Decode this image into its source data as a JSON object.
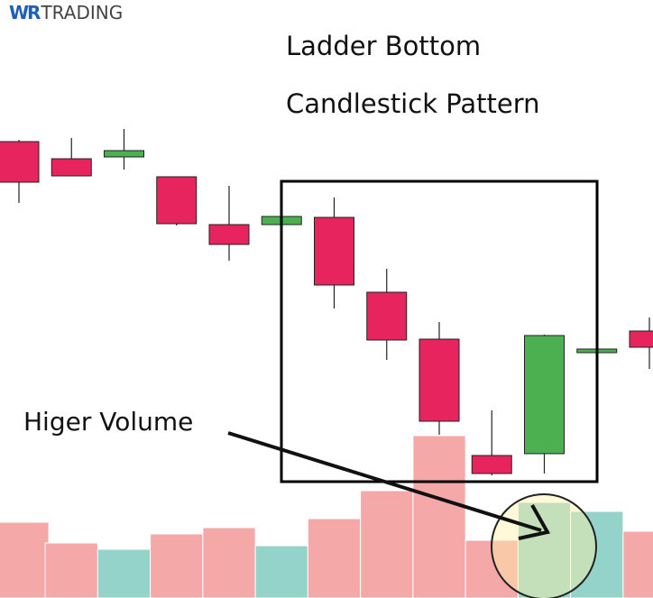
{
  "brand": {
    "mark": "WR",
    "name": "TRADING"
  },
  "chart_data": {
    "type": "candlestick",
    "title": "Ladder Bottom",
    "subtitle": "Candlestick Pattern",
    "annotation": "Higer Volume",
    "open": [
      506,
      487,
      489,
      467,
      414,
      414,
      422,
      339,
      287,
      158,
      160,
      272,
      296
    ],
    "high": [
      508,
      510,
      520,
      467,
      457,
      423,
      444,
      365,
      306,
      208,
      292,
      276,
      311
    ],
    "low": [
      438,
      468,
      475,
      413,
      374,
      414,
      321,
      264,
      181,
      136,
      138,
      272,
      254
    ],
    "close": [
      461,
      468,
      496,
      415,
      392,
      423,
      347,
      286,
      196,
      138,
      291,
      276,
      278
    ],
    "volume": [
      84,
      61,
      54,
      71,
      78,
      58,
      88,
      119,
      180,
      64,
      106,
      96,
      74
    ],
    "up_color": "#4caf50",
    "down_color": "#e8245e",
    "volume_up_color": "#93d3c9",
    "volume_down_color": "#f5a8a8",
    "ylim": [
      0,
      663
    ]
  }
}
